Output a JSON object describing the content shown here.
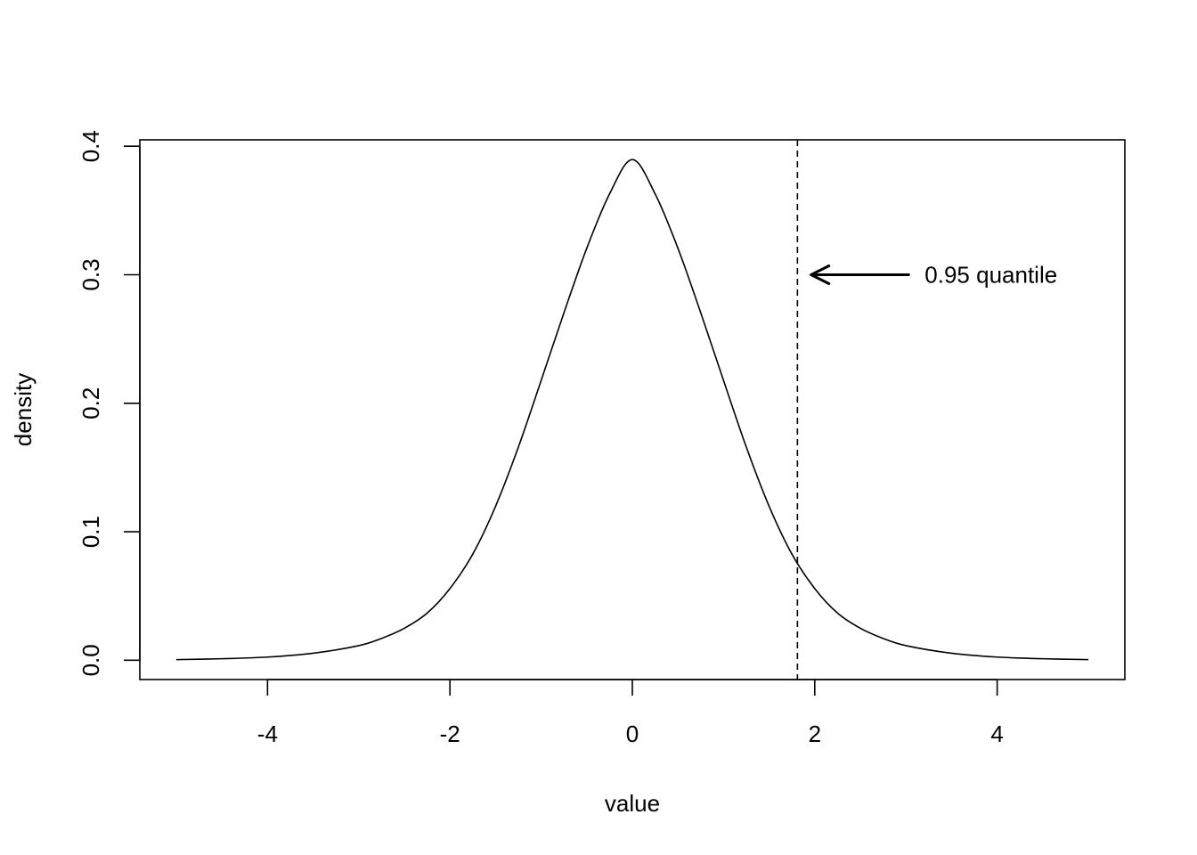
{
  "chart_data": {
    "type": "line",
    "title": "",
    "xlabel": "value",
    "ylabel": "density",
    "xlim": [
      -5.4,
      5.4
    ],
    "ylim": [
      -0.015,
      0.405
    ],
    "x_ticks": [
      -4,
      -2,
      0,
      2,
      4
    ],
    "x_tick_labels": [
      "-4",
      "-2",
      "0",
      "2",
      "4"
    ],
    "y_ticks": [
      0.0,
      0.1,
      0.2,
      0.3,
      0.4
    ],
    "y_tick_labels": [
      "0.0",
      "0.1",
      "0.2",
      "0.3",
      "0.4"
    ],
    "grid": false,
    "series": [
      {
        "x": [
          -5.0,
          -4.5,
          -4.0,
          -3.5,
          -3.0,
          -2.75,
          -2.5,
          -2.25,
          -2.0,
          -1.75,
          -1.5,
          -1.25,
          -1.0,
          -0.75,
          -0.5,
          -0.25,
          0.0,
          0.25,
          0.5,
          0.75,
          1.0,
          1.25,
          1.5,
          1.75,
          2.0,
          2.25,
          2.5,
          2.75,
          3.0,
          3.5,
          4.0,
          4.5,
          5.0
        ],
        "y": [
          0.0005,
          0.0012,
          0.0025,
          0.0055,
          0.0114,
          0.017,
          0.0249,
          0.0367,
          0.0558,
          0.0826,
          0.1198,
          0.1658,
          0.2177,
          0.2704,
          0.3206,
          0.3629,
          0.3896,
          0.3629,
          0.3206,
          0.2704,
          0.2177,
          0.1658,
          0.1198,
          0.0826,
          0.0558,
          0.0367,
          0.0249,
          0.017,
          0.0114,
          0.0055,
          0.0025,
          0.0012,
          0.0005
        ]
      }
    ],
    "vline": {
      "x": 1.81,
      "style": "dashed"
    },
    "annotation": {
      "text": "0.95 quantile",
      "arrow_from_x": 3.03,
      "arrow_to_x": 1.96,
      "y": 0.3
    }
  }
}
